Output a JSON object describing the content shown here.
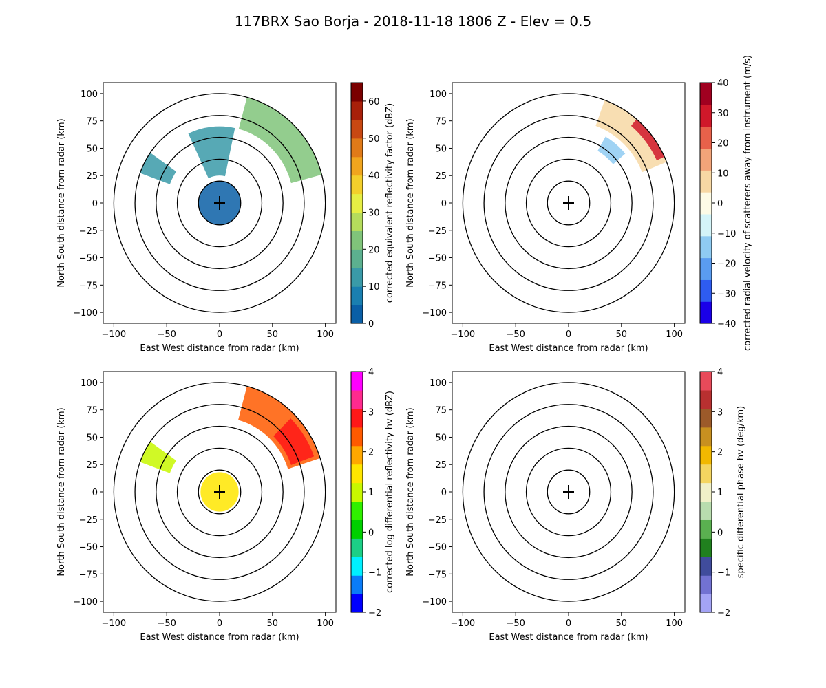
{
  "title": "117BRX Sao Borja - 2018-11-18 1806 Z -  Elev = 0.5",
  "chart_data": [
    {
      "type": "heatmap",
      "subtype": "radar-ppi",
      "xlabel": "East West distance from radar (km)",
      "ylabel": "North South distance from radar (km)",
      "xlim": [
        -110,
        110
      ],
      "ylim": [
        -110,
        110
      ],
      "ticks": [
        -100,
        -75,
        -50,
        -25,
        0,
        25,
        50,
        75,
        100
      ],
      "xticks": [
        -100,
        -50,
        0,
        50,
        100
      ],
      "range_rings_km": [
        20,
        40,
        60,
        80,
        100
      ],
      "colorbar": {
        "label": "corrected equivalent reflectivity factor (dBZ)",
        "min": 0,
        "max": 65,
        "ticks": [
          0,
          10,
          20,
          30,
          40,
          50,
          60
        ],
        "colormap": [
          "#0a5fa6",
          "#1a7fb0",
          "#3a9aa8",
          "#5cb08f",
          "#80c47a",
          "#b5dc5c",
          "#e6ee44",
          "#f3cf2b",
          "#f0a51e",
          "#e07a18",
          "#c84812",
          "#a8200a",
          "#7a0000"
        ]
      },
      "echoes": [
        {
          "name": "northeast-band",
          "az_start": 15,
          "az_end": 75,
          "r_inner": 70,
          "r_outer": 100,
          "value": 24
        },
        {
          "name": "north-stratiform",
          "az_start": 335,
          "az_end": 12,
          "r_inner": 25,
          "r_outer": 70,
          "value": 10
        },
        {
          "name": "core-ground-clutter",
          "az_start": 0,
          "az_end": 360,
          "r_inner": 0,
          "r_outer": 20,
          "value": 4
        },
        {
          "name": "west-scatter",
          "az_start": 290,
          "az_end": 305,
          "r_inner": 50,
          "r_outer": 80,
          "value": 12
        }
      ]
    },
    {
      "type": "heatmap",
      "subtype": "radar-ppi",
      "xlabel": "East West distance from radar (km)",
      "ylabel": "North South distance from radar (km)",
      "xlim": [
        -110,
        110
      ],
      "ylim": [
        -110,
        110
      ],
      "ticks": [
        -100,
        -75,
        -50,
        -25,
        0,
        25,
        50,
        75,
        100
      ],
      "xticks": [
        -100,
        -50,
        0,
        50,
        100
      ],
      "range_rings_km": [
        20,
        40,
        60,
        80,
        100
      ],
      "colorbar": {
        "label": "corrected radial velocity of scatterers away from instrument (m/s)",
        "min": -40,
        "max": 40,
        "ticks": [
          -40,
          -30,
          -20,
          -10,
          0,
          10,
          20,
          30,
          40
        ],
        "colormap": [
          "#1a00e8",
          "#2e5cf0",
          "#5a9cf0",
          "#8fcbf2",
          "#d4f4f8",
          "#fdfbe6",
          "#f7d8a4",
          "#f2a479",
          "#e8614a",
          "#d0182a",
          "#a00020"
        ]
      },
      "echoes": [
        {
          "name": "northeast-band",
          "az_start": 20,
          "az_end": 68,
          "r_inner": 75,
          "r_outer": 100,
          "value": 10
        },
        {
          "name": "northeast-edge",
          "az_start": 40,
          "az_end": 65,
          "r_inner": 92,
          "r_outer": 100,
          "value": 28
        },
        {
          "name": "inbound-patch",
          "az_start": 30,
          "az_end": 50,
          "r_inner": 55,
          "r_outer": 70,
          "value": -14
        }
      ]
    },
    {
      "type": "heatmap",
      "subtype": "radar-ppi",
      "xlabel": "East West distance from radar (km)",
      "ylabel": "North South distance from radar (km)",
      "xlim": [
        -110,
        110
      ],
      "ylim": [
        -110,
        110
      ],
      "ticks": [
        -100,
        -75,
        -50,
        -25,
        0,
        25,
        50,
        75,
        100
      ],
      "xticks": [
        -100,
        -50,
        0,
        50,
        100
      ],
      "range_rings_km": [
        20,
        40,
        60,
        80,
        100
      ],
      "colorbar": {
        "label": "corrected log differential reflectivity hv (dBZ)",
        "min": -2,
        "max": 4,
        "ticks": [
          -2,
          -1,
          0,
          1,
          2,
          3,
          4
        ],
        "colormap": [
          "#0000ff",
          "#0a7cf8",
          "#00f0ff",
          "#1ccf86",
          "#00d000",
          "#30f000",
          "#c8f800",
          "#ffe600",
          "#ffa800",
          "#ff5a00",
          "#ff1818",
          "#ff2a8e",
          "#ff00ff"
        ]
      },
      "echoes": [
        {
          "name": "northeast-band",
          "az_start": 15,
          "az_end": 72,
          "r_inner": 68,
          "r_outer": 100,
          "value": 2.4
        },
        {
          "name": "northeast-core",
          "az_start": 45,
          "az_end": 70,
          "r_inner": 72,
          "r_outer": 95,
          "value": 3.0
        },
        {
          "name": "west-scatter",
          "az_start": 290,
          "az_end": 305,
          "r_inner": 50,
          "r_outer": 80,
          "value": 1.0
        },
        {
          "name": "core-clutter",
          "az_start": 0,
          "az_end": 360,
          "r_inner": 0,
          "r_outer": 18,
          "value": 1.5
        }
      ]
    },
    {
      "type": "heatmap",
      "subtype": "radar-ppi",
      "xlabel": "East West distance from radar (km)",
      "ylabel": "North South distance from radar (km)",
      "xlim": [
        -110,
        110
      ],
      "ylim": [
        -110,
        110
      ],
      "ticks": [
        -100,
        -75,
        -50,
        -25,
        0,
        25,
        50,
        75,
        100
      ],
      "xticks": [
        -100,
        -50,
        0,
        50,
        100
      ],
      "range_rings_km": [
        20,
        40,
        60,
        80,
        100
      ],
      "colorbar": {
        "label": "specific differential phase hv (deg/km)",
        "min": -2,
        "max": 4,
        "ticks": [
          -2,
          -1,
          0,
          1,
          2,
          3,
          4
        ],
        "colormap": [
          "#a3a3f5",
          "#7272d2",
          "#404c9c",
          "#20801e",
          "#5ab050",
          "#b8dcae",
          "#f0f0c8",
          "#f4d560",
          "#f2b800",
          "#c89020",
          "#9c5a2a",
          "#b83030",
          "#e84a5a"
        ]
      },
      "echoes": []
    }
  ]
}
